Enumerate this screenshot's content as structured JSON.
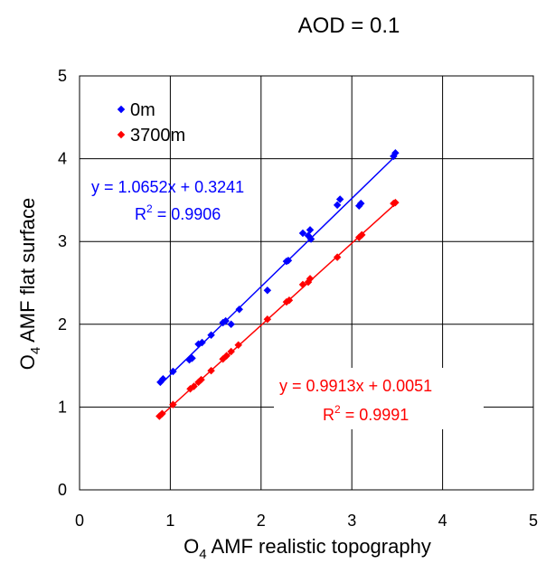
{
  "chart_data": {
    "type": "scatter",
    "title": "AOD = 0.1",
    "xlabel": {
      "base": "O",
      "sub": "4",
      "rest": " AMF realistic topography"
    },
    "ylabel": {
      "base": "O",
      "sub": "4",
      "rest": " AMF flat surface"
    },
    "xlim": [
      0,
      5
    ],
    "ylim": [
      0,
      5
    ],
    "xticks": [
      0,
      1,
      2,
      3,
      4,
      5
    ],
    "yticks": [
      0,
      1,
      2,
      3,
      4,
      5
    ],
    "grid": true,
    "legend_position": "top-left",
    "series": [
      {
        "name": "0m",
        "color": "#0000ff",
        "x": [
          0.89,
          0.92,
          1.03,
          1.21,
          1.24,
          1.31,
          1.35,
          1.45,
          1.58,
          1.61,
          1.67,
          1.76,
          2.07,
          2.28,
          2.3,
          2.46,
          2.52,
          2.54,
          2.55,
          2.84,
          2.87,
          3.08,
          3.1,
          3.46,
          3.48
        ],
        "y": [
          1.3,
          1.34,
          1.43,
          1.57,
          1.59,
          1.76,
          1.78,
          1.87,
          2.02,
          2.04,
          2.0,
          2.18,
          2.41,
          2.76,
          2.77,
          3.1,
          3.07,
          3.14,
          3.03,
          3.44,
          3.51,
          3.43,
          3.46,
          4.03,
          4.07
        ]
      },
      {
        "name": "3700m",
        "color": "#ff0000",
        "x": [
          0.88,
          0.91,
          1.03,
          1.22,
          1.26,
          1.31,
          1.34,
          1.45,
          1.58,
          1.62,
          1.67,
          1.75,
          2.07,
          2.28,
          2.31,
          2.46,
          2.52,
          2.54,
          2.84,
          3.08,
          3.11,
          3.46,
          3.48
        ],
        "y": [
          0.89,
          0.92,
          1.03,
          1.22,
          1.25,
          1.3,
          1.33,
          1.44,
          1.58,
          1.62,
          1.67,
          1.75,
          2.06,
          2.27,
          2.29,
          2.48,
          2.51,
          2.55,
          2.81,
          3.05,
          3.08,
          3.46,
          3.47
        ]
      }
    ],
    "trendlines": [
      {
        "series": "0m",
        "slope": 1.0652,
        "intercept": 0.3241,
        "x_range": [
          0.89,
          3.48
        ],
        "equation": "y = 1.0652x + 0.3241",
        "r2_label": "R",
        "r2_sup": "2",
        "r2_value": " = 0.9906",
        "color": "#0000ff"
      },
      {
        "series": "3700m",
        "slope": 0.9913,
        "intercept": 0.0051,
        "x_range": [
          0.88,
          3.48
        ],
        "equation": "y = 0.9913x + 0.0051",
        "r2_label": "R",
        "r2_sup": "2",
        "r2_value": " = 0.9991",
        "color": "#ff0000"
      }
    ]
  }
}
